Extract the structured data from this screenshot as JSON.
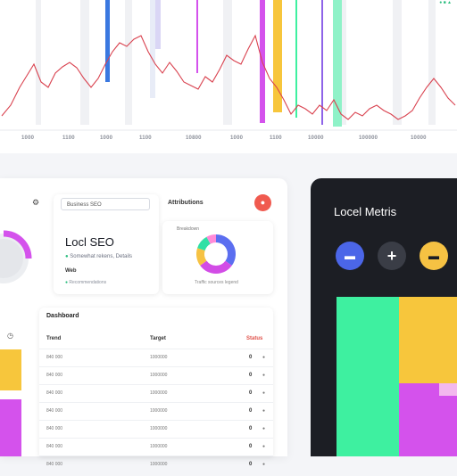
{
  "top_chart": {
    "tick_labels": [
      "1000",
      "1100",
      "1000",
      "1100",
      "10800",
      "1000",
      "1100",
      "10000",
      "100000",
      "10000"
    ],
    "legend": "● ■ ▲",
    "line_points": [
      2,
      130,
      12,
      118,
      22,
      98,
      30,
      85,
      38,
      72,
      46,
      92,
      54,
      98,
      62,
      82,
      70,
      75,
      78,
      70,
      86,
      76,
      94,
      88,
      102,
      98,
      110,
      88,
      118,
      72,
      126,
      58,
      134,
      48,
      142,
      52,
      150,
      44,
      158,
      40,
      166,
      58,
      174,
      72,
      182,
      82,
      190,
      70,
      198,
      80,
      206,
      92,
      214,
      96,
      222,
      100,
      230,
      86,
      238,
      92,
      246,
      78,
      254,
      62,
      262,
      68,
      270,
      72,
      278,
      55,
      286,
      40,
      294,
      70,
      302,
      88,
      310,
      98,
      318,
      112,
      326,
      128,
      334,
      118,
      342,
      122,
      350,
      128,
      358,
      118,
      366,
      124,
      374,
      112,
      382,
      128,
      390,
      134,
      398,
      126,
      406,
      130,
      414,
      122,
      422,
      118,
      430,
      124,
      438,
      128,
      446,
      134,
      454,
      130,
      462,
      124,
      470,
      110,
      478,
      98,
      486,
      88,
      494,
      98,
      502,
      110,
      510,
      118
    ]
  },
  "panel": {
    "settings_icon": "gear-icon",
    "seo_card": {
      "search_text": "Business SEO",
      "title": "Locl SEO",
      "subtitle": "Somewhat rekens, Details",
      "line2": "Web",
      "line3": "Recommendations"
    },
    "attribution_label": "Attributions",
    "alert_icon": "alert-icon",
    "donut": {
      "title": "Breakdown",
      "caption": "Traffic sources legend",
      "slices": [
        {
          "value": 35,
          "color": "#5b6ef0"
        },
        {
          "value": 30,
          "color": "#d24ce6"
        },
        {
          "value": 15,
          "color": "#f6c243"
        },
        {
          "value": 12,
          "color": "#2fe0a5"
        },
        {
          "value": 8,
          "color": "#ff8ad8"
        }
      ]
    },
    "table": {
      "title": "Dashboard",
      "headers": [
        "Trend",
        "Target",
        "Status"
      ],
      "rows": [
        {
          "a": "840 000",
          "b": "1000000",
          "c": "0"
        },
        {
          "a": "840 000",
          "b": "1000000",
          "c": "0"
        },
        {
          "a": "840 000",
          "b": "1000000",
          "c": "0"
        },
        {
          "a": "840 000",
          "b": "1000000",
          "c": "0"
        },
        {
          "a": "840 000",
          "b": "1000000",
          "c": "0"
        },
        {
          "a": "840 000",
          "b": "1000000",
          "c": "0"
        },
        {
          "a": "840 000",
          "b": "1000000",
          "c": "0"
        }
      ]
    }
  },
  "dark_panel": {
    "title": "Locel Metris",
    "buttons": [
      {
        "icon": "chat-icon",
        "label": "▬"
      },
      {
        "icon": "plus-icon",
        "label": "+"
      },
      {
        "icon": "dots-icon",
        "label": "▬"
      }
    ]
  },
  "colors": {
    "green": "#3ef0a0",
    "yellow": "#f7c63c",
    "magenta": "#d452ec",
    "blue": "#3a78e0",
    "red_line": "#d9424f"
  }
}
